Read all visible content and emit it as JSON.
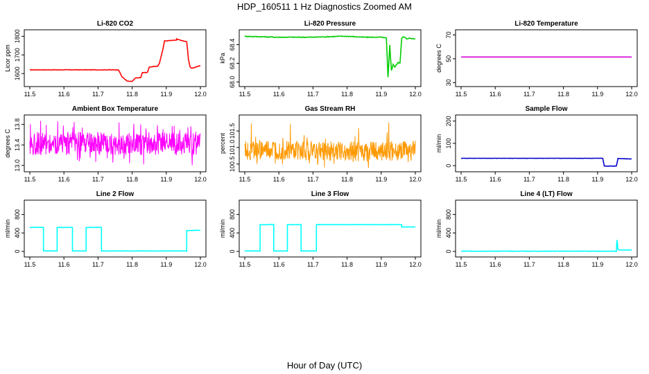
{
  "page": {
    "title": "HDP_160511  1 Hz Diagnostics Zoomed AM",
    "xlabel": "Hour of Day (UTC)"
  },
  "chart_data": [
    {
      "type": "line",
      "title": "Li-820 CO2",
      "ylabel": "Licor ppm",
      "color": "#ff0000",
      "xlim": [
        11.5,
        12.0
      ],
      "ylim": [
        1545,
        1820
      ],
      "xticks": [
        "11.5",
        "11.6",
        "11.7",
        "11.8",
        "11.9",
        "12.0"
      ],
      "yticks": [
        "1600",
        "1700",
        "1800"
      ],
      "ytick_values": [
        1600,
        1700,
        1800
      ],
      "noise": 0.004,
      "series": [
        {
          "x": [
            11.5,
            11.76,
            11.77,
            11.785,
            11.79,
            11.8,
            11.81,
            11.825,
            11.83,
            11.845,
            11.85,
            11.865,
            11.875,
            11.88,
            11.89,
            11.895,
            11.93,
            11.93,
            11.96,
            11.965,
            11.97,
            11.975,
            11.985,
            12.0
          ],
          "y": [
            1620,
            1620,
            1583,
            1560,
            1558,
            1558,
            1576,
            1578,
            1605,
            1606,
            1635,
            1638,
            1640,
            1655,
            1730,
            1775,
            1780,
            1785,
            1770,
            1675,
            1636,
            1628,
            1634,
            1643
          ]
        }
      ]
    },
    {
      "type": "line",
      "title": "Li-820 Pressure",
      "ylabel": "kPa",
      "color": "#00cc00",
      "xlim": [
        11.5,
        12.0
      ],
      "ylim": [
        67.98,
        68.53
      ],
      "xticks": [
        "11.5",
        "11.6",
        "11.7",
        "11.8",
        "11.9",
        "12.0"
      ],
      "yticks": [
        "68.0",
        "68.2",
        "68.4"
      ],
      "ytick_values": [
        68.0,
        68.2,
        68.4
      ],
      "noise": 0.008,
      "series": [
        {
          "x": [
            11.5,
            11.6,
            11.7,
            11.78,
            11.8,
            11.85,
            11.9,
            11.915,
            11.92,
            11.925,
            11.93,
            11.935,
            11.94,
            11.95,
            11.955,
            11.96,
            11.965,
            11.975,
            11.985,
            12.0
          ],
          "y": [
            68.49,
            68.48,
            68.48,
            68.49,
            68.49,
            68.48,
            68.48,
            68.47,
            68.05,
            68.4,
            68.12,
            68.19,
            68.16,
            68.21,
            68.2,
            68.47,
            68.49,
            68.46,
            68.47,
            68.46
          ]
        }
      ]
    },
    {
      "type": "line",
      "title": "Li-820 Temperature",
      "ylabel": "degrees C",
      "color": "#d400d4",
      "xlim": [
        11.5,
        12.0
      ],
      "ylim": [
        29,
        72
      ],
      "xticks": [
        "11.5",
        "11.6",
        "11.7",
        "11.8",
        "11.9",
        "12.0"
      ],
      "yticks": [
        "30",
        "50",
        "70"
      ],
      "ytick_values": [
        30,
        50,
        70
      ],
      "noise": 0,
      "series": [
        {
          "x": [
            11.5,
            12.0
          ],
          "y": [
            51.5,
            51.5
          ]
        }
      ]
    },
    {
      "type": "line",
      "title": "Ambient Box Temperature",
      "ylabel": "degrees C",
      "color": "#ff00ff",
      "xlim": [
        11.5,
        12.0
      ],
      "ylim": [
        12.93,
        13.93
      ],
      "xticks": [
        "11.5",
        "11.6",
        "11.7",
        "11.8",
        "11.9",
        "12.0"
      ],
      "yticks": [
        "13.0",
        "13.4",
        "13.8"
      ],
      "ytick_values": [
        13.0,
        13.4,
        13.8
      ],
      "noise": 0,
      "band": {
        "low": 13.2,
        "high": 13.65,
        "min": 12.96,
        "max": 13.88
      },
      "series": [
        {
          "x": [
            11.5,
            12.0
          ],
          "y": [
            13.42,
            13.42
          ]
        }
      ]
    },
    {
      "type": "line",
      "title": "Gas Stream RH",
      "ylabel": "percent",
      "color": "#ff9900",
      "xlim": [
        11.5,
        12.0
      ],
      "ylim": [
        100.35,
        101.9
      ],
      "xticks": [
        "11.5",
        "11.6",
        "11.7",
        "11.8",
        "11.9",
        "12.0"
      ],
      "yticks": [
        "100.5",
        "101.0",
        "101.5"
      ],
      "ytick_values": [
        100.5,
        101.0,
        101.5
      ],
      "noise": 0,
      "band": {
        "low": 100.6,
        "high": 101.2,
        "min": 100.38,
        "max": 101.8
      },
      "series": [
        {
          "x": [
            11.5,
            12.0
          ],
          "y": [
            100.9,
            100.9
          ]
        }
      ]
    },
    {
      "type": "line",
      "title": "Sample Flow",
      "ylabel": "ml/min",
      "color": "#0000cc",
      "xlim": [
        11.5,
        12.0
      ],
      "ylim": [
        -15,
        215
      ],
      "xticks": [
        "11.5",
        "11.6",
        "11.7",
        "11.8",
        "11.9",
        "12.0"
      ],
      "yticks": [
        "0",
        "100",
        "200"
      ],
      "ytick_values": [
        0,
        100,
        200
      ],
      "noise": 0.002,
      "series": [
        {
          "x": [
            11.5,
            11.915,
            11.92,
            11.955,
            11.96,
            12.0
          ],
          "y": [
            33,
            33,
            -2,
            -2,
            32,
            30
          ]
        }
      ]
    },
    {
      "type": "line",
      "title": "Line 2 Flow",
      "ylabel": "ml/min",
      "color": "#00ffff",
      "xlim": [
        11.5,
        12.0
      ],
      "ylim": [
        -60,
        1050
      ],
      "xticks": [
        "11.5",
        "11.6",
        "11.7",
        "11.8",
        "11.9",
        "12.0"
      ],
      "yticks": [
        "0",
        "400",
        "800"
      ],
      "ytick_values": [
        0,
        400,
        800
      ],
      "noise": 0.003,
      "series": [
        {
          "x": [
            11.5,
            11.54,
            11.54,
            11.58,
            11.58,
            11.625,
            11.625,
            11.665,
            11.665,
            11.71,
            11.71,
            11.96,
            11.96,
            12.0
          ],
          "y": [
            520,
            520,
            10,
            10,
            520,
            520,
            10,
            10,
            520,
            520,
            10,
            10,
            450,
            460
          ]
        }
      ]
    },
    {
      "type": "line",
      "title": "Line 3 Flow",
      "ylabel": "ml/min",
      "color": "#00ffff",
      "xlim": [
        11.5,
        12.0
      ],
      "ylim": [
        -60,
        1050
      ],
      "xticks": [
        "11.5",
        "11.6",
        "11.7",
        "11.8",
        "11.9",
        "12.0"
      ],
      "yticks": [
        "0",
        "400",
        "800"
      ],
      "ytick_values": [
        0,
        400,
        800
      ],
      "noise": 0.003,
      "series": [
        {
          "x": [
            11.5,
            11.545,
            11.545,
            11.585,
            11.585,
            11.625,
            11.625,
            11.665,
            11.665,
            11.71,
            11.71,
            11.96,
            11.96,
            12.0
          ],
          "y": [
            10,
            10,
            580,
            580,
            10,
            10,
            580,
            580,
            10,
            10,
            580,
            580,
            530,
            530
          ]
        }
      ]
    },
    {
      "type": "line",
      "title": "Line 4 (LT) Flow",
      "ylabel": "ml/min",
      "color": "#00ffff",
      "xlim": [
        11.5,
        12.0
      ],
      "ylim": [
        -60,
        1050
      ],
      "xticks": [
        "11.5",
        "11.6",
        "11.7",
        "11.8",
        "11.9",
        "12.0"
      ],
      "yticks": [
        "0",
        "400",
        "800"
      ],
      "ytick_values": [
        0,
        400,
        800
      ],
      "noise": 0.003,
      "series": [
        {
          "x": [
            11.5,
            11.955,
            11.957,
            11.96,
            11.963,
            12.0
          ],
          "y": [
            5,
            5,
            250,
            40,
            30,
            30
          ]
        }
      ]
    }
  ]
}
